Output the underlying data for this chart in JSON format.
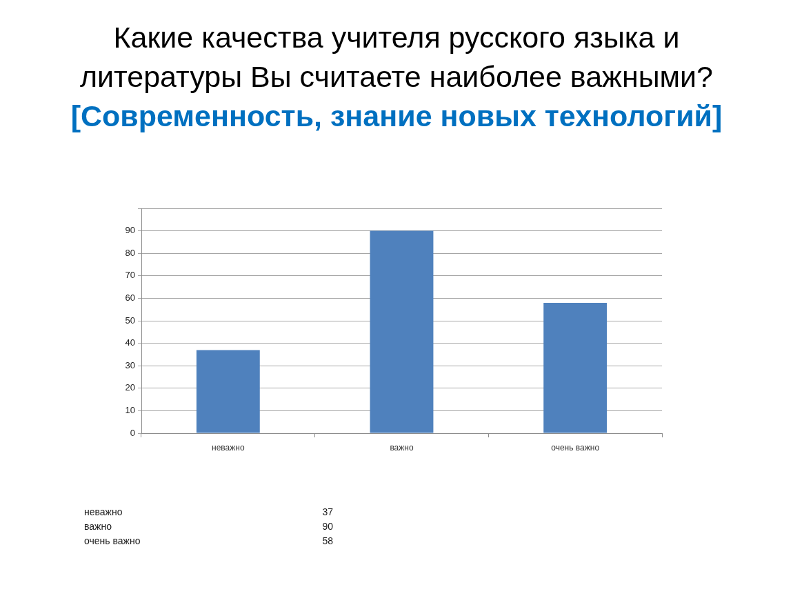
{
  "chart_data": {
    "type": "bar",
    "title": "Какие качества учителя русского языка и литературы Вы считаете наиболее важными?",
    "subtitle": "[Современность, знание новых технологий]",
    "categories": [
      "неважно",
      "важно",
      "очень важно"
    ],
    "values": [
      37,
      90,
      58
    ],
    "color": "#4f81bd",
    "ylim": [
      0,
      100
    ],
    "yticks": [
      0,
      10,
      20,
      30,
      40,
      50,
      60,
      70,
      80,
      90,
      {
        "value": 100,
        "label": null
      }
    ],
    "grid": "y",
    "annotations": [
      "37",
      "90",
      "58"
    ]
  }
}
